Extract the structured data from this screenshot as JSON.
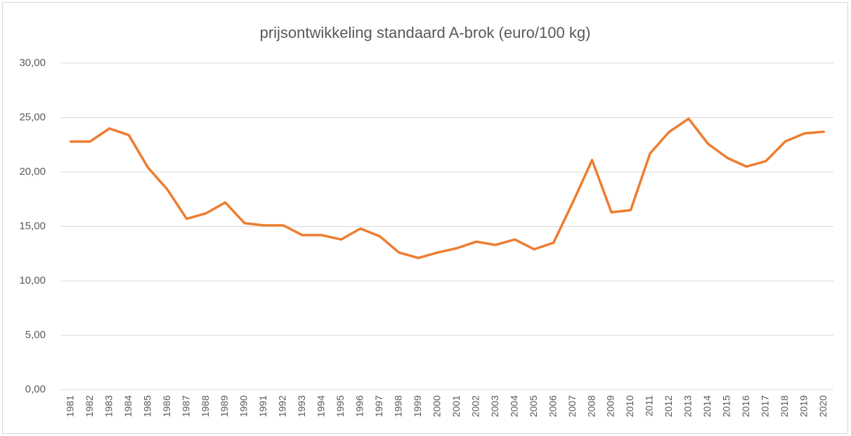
{
  "chart_data": {
    "type": "line",
    "title": "prijsontwikkeling standaard A-brok (euro/100 kg)",
    "categories": [
      "1981",
      "1982",
      "1983",
      "1984",
      "1985",
      "1986",
      "1987",
      "1988",
      "1989",
      "1990",
      "1991",
      "1992",
      "1993",
      "1994",
      "1995",
      "1996",
      "1997",
      "1998",
      "1999",
      "2000",
      "2001",
      "2002",
      "2003",
      "2004",
      "2005",
      "2006",
      "2007",
      "2008",
      "2009",
      "2010",
      "2011",
      "2012",
      "2013",
      "2014",
      "2015",
      "2016",
      "2017",
      "2018",
      "2019",
      "2020"
    ],
    "values": [
      22.8,
      22.8,
      24.0,
      23.4,
      20.4,
      18.4,
      15.7,
      16.2,
      17.2,
      15.3,
      15.1,
      15.1,
      14.2,
      14.2,
      13.8,
      14.8,
      14.1,
      12.6,
      12.1,
      12.6,
      13.0,
      13.6,
      13.3,
      13.8,
      12.9,
      13.5,
      17.2,
      21.1,
      16.3,
      16.5,
      21.7,
      23.7,
      24.9,
      22.6,
      21.3,
      20.5,
      21.0,
      22.8,
      23.55,
      23.7
    ],
    "color": "#ed7d31",
    "ylim": [
      0,
      30
    ],
    "yticks": [
      {
        "value": 0,
        "label": "0,00"
      },
      {
        "value": 5,
        "label": "5,00"
      },
      {
        "value": 10,
        "label": "10,00"
      },
      {
        "value": 15,
        "label": "15,00"
      },
      {
        "value": 20,
        "label": "20,00"
      },
      {
        "value": 25,
        "label": "25,00"
      },
      {
        "value": 30,
        "label": "30,00"
      }
    ],
    "grid": true
  }
}
